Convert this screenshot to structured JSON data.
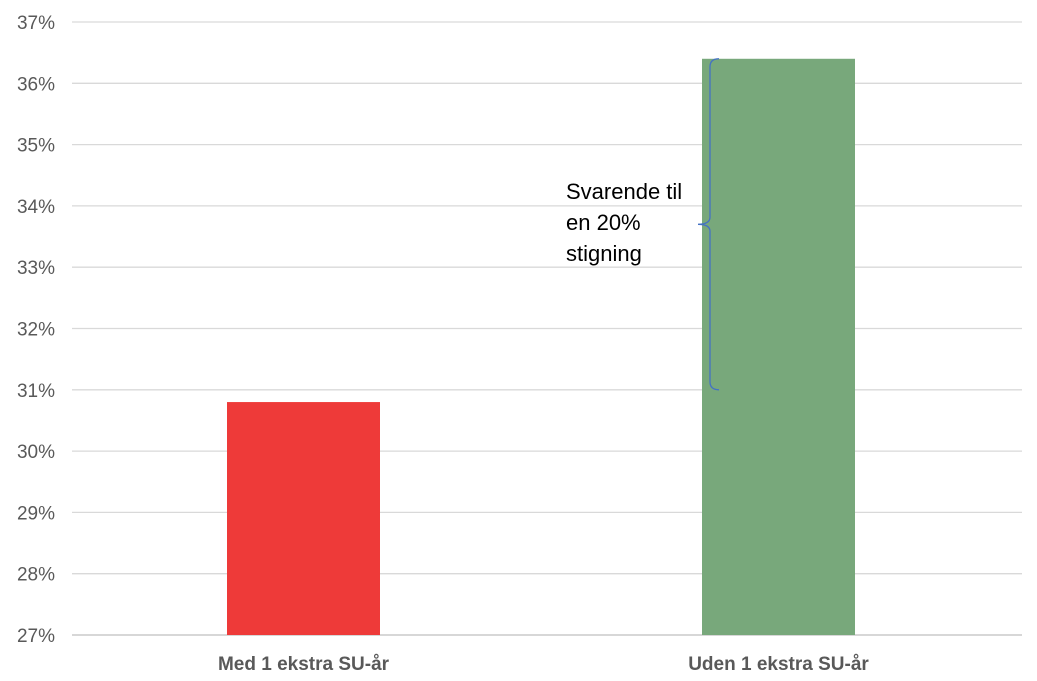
{
  "chart_data": {
    "type": "bar",
    "categories": [
      "Med 1 ekstra SU-år",
      "Uden 1 ekstra SU-år"
    ],
    "values": [
      30.8,
      36.4
    ],
    "colors": [
      "#ee3a39",
      "#78a87b"
    ],
    "ylim": [
      27,
      37
    ],
    "ytick_step": 1,
    "ytick_labels": [
      "27%",
      "28%",
      "29%",
      "30%",
      "31%",
      "32%",
      "33%",
      "34%",
      "35%",
      "36%",
      "37%"
    ],
    "grid": true,
    "legend": "none",
    "title": "",
    "xlabel": "",
    "ylabel": "",
    "annotation": {
      "text_lines": [
        "Svarende til",
        "en 20%",
        "stigning"
      ],
      "brace_from": 31.0,
      "brace_to": 36.4,
      "brace_color": "#4472c4"
    }
  }
}
